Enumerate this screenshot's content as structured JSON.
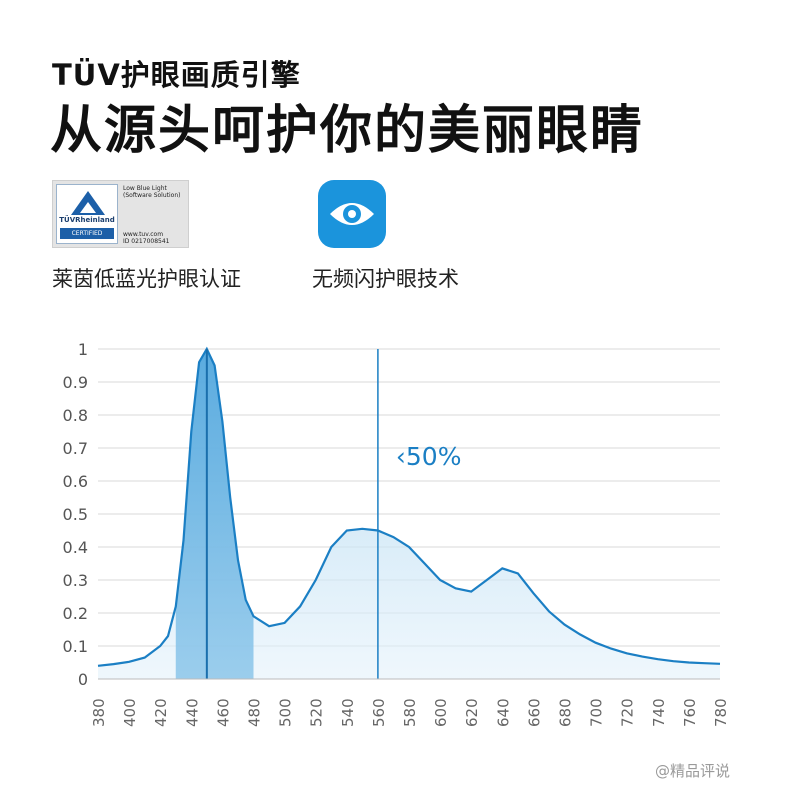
{
  "header": {
    "subtitle": "TÜV护眼画质引擎",
    "title": "从源头呵护你的美丽眼睛"
  },
  "features": [
    {
      "label": "莱茵低蓝光护眼认证",
      "badge": {
        "brand": "TÜVRheinland",
        "certified": "CERTIFIED",
        "text": "Low Blue Light (Software Solution)",
        "url": "www.tuv.com",
        "id": "ID 0217008541"
      }
    },
    {
      "label": "无频闪护眼技术",
      "icon": "eye-icon"
    }
  ],
  "colors": {
    "accent": "#1b7fc4",
    "fill": "#a9d4ef",
    "grid": "#d8d8d8"
  },
  "chart_data": {
    "type": "area",
    "title": "",
    "xlabel": "",
    "ylabel": "",
    "xlim": [
      380,
      780
    ],
    "ylim": [
      0,
      1
    ],
    "grid": true,
    "xticks": [
      380,
      400,
      420,
      440,
      460,
      480,
      500,
      520,
      540,
      560,
      580,
      600,
      620,
      640,
      660,
      680,
      700,
      720,
      740,
      760,
      780
    ],
    "yticks": [
      {
        "value": 0,
        "label": "0"
      },
      {
        "value": 0.1,
        "label": "0.1"
      },
      {
        "value": 0.2,
        "label": "0.2"
      },
      {
        "value": 0.3,
        "label": "0.3"
      },
      {
        "value": 0.4,
        "label": "0.4"
      },
      {
        "value": 0.5,
        "label": "0.5"
      },
      {
        "value": 0.6,
        "label": "0.6"
      },
      {
        "value": 0.7,
        "label": "0.7"
      },
      {
        "value": 0.8,
        "label": "0.8"
      },
      {
        "value": 0.9,
        "label": "0.9"
      },
      {
        "value": 1,
        "label": "1"
      }
    ],
    "series": [
      {
        "x": [
          380,
          390,
          400,
          410,
          420,
          425,
          430,
          435,
          440,
          445,
          450,
          455,
          460,
          465,
          470,
          475,
          480,
          490,
          500,
          510,
          520,
          530,
          540,
          550,
          560,
          570,
          580,
          590,
          600,
          610,
          620,
          630,
          640,
          650,
          660,
          670,
          680,
          690,
          700,
          710,
          720,
          730,
          740,
          750,
          760,
          770,
          780
        ],
        "y": [
          0.04,
          0.045,
          0.052,
          0.065,
          0.1,
          0.13,
          0.22,
          0.42,
          0.75,
          0.96,
          1.0,
          0.95,
          0.78,
          0.55,
          0.36,
          0.24,
          0.19,
          0.16,
          0.17,
          0.22,
          0.3,
          0.4,
          0.45,
          0.455,
          0.45,
          0.43,
          0.4,
          0.35,
          0.3,
          0.275,
          0.265,
          0.3,
          0.335,
          0.32,
          0.26,
          0.205,
          0.165,
          0.135,
          0.11,
          0.092,
          0.078,
          0.068,
          0.06,
          0.054,
          0.05,
          0.048,
          0.046
        ]
      }
    ],
    "blue_band": {
      "from": 430,
      "to": 480,
      "peak": 450
    },
    "marker": {
      "x": 560,
      "label": "‹50%"
    }
  },
  "watermark": "@精品评说"
}
